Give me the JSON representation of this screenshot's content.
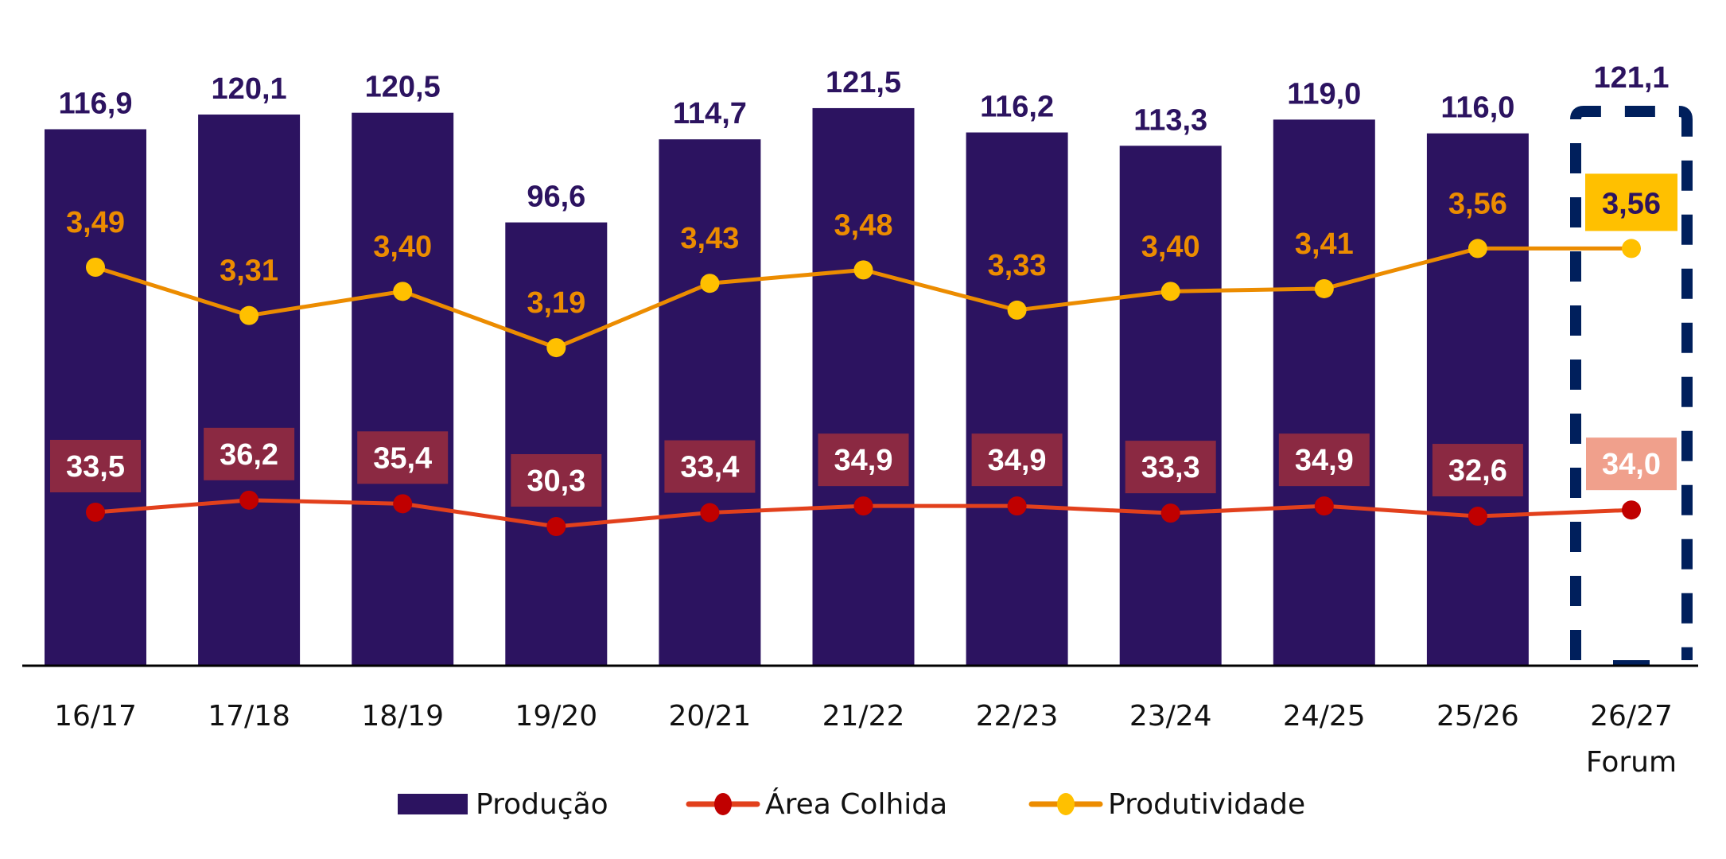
{
  "chart_data": {
    "type": "bar",
    "categories": [
      "16/17",
      "17/18",
      "18/19",
      "19/20",
      "20/21",
      "21/22",
      "22/23",
      "23/24",
      "24/25",
      "25/26",
      "26/27"
    ],
    "category_sublabels": {
      "26/27": "Forum"
    },
    "series": [
      {
        "name": "Produção",
        "type": "bar",
        "color": "#2c1360",
        "values": [
          116.9,
          120.1,
          120.5,
          96.6,
          114.7,
          121.5,
          116.2,
          113.3,
          119.0,
          116.0,
          121.1
        ],
        "labels": [
          "116,9",
          "120,1",
          "120,5",
          "96,6",
          "114,7",
          "121,5",
          "116,2",
          "113,3",
          "119,0",
          "116,0",
          "121,1"
        ]
      },
      {
        "name": "Área Colhida",
        "type": "line",
        "color": "#e2401c",
        "marker_color": "#c00000",
        "label_bg": "#8b2942",
        "highlight_label_bg": "#f0a08c",
        "values": [
          33.5,
          36.2,
          35.4,
          30.3,
          33.4,
          34.9,
          34.9,
          33.3,
          34.9,
          32.6,
          34.0
        ],
        "labels": [
          "33,5",
          "36,2",
          "35,4",
          "30,3",
          "33,4",
          "34,9",
          "34,9",
          "33,3",
          "34,9",
          "32,6",
          "34,0"
        ]
      },
      {
        "name": "Produtividade",
        "type": "line",
        "color": "#ec8c00",
        "marker_color": "#ffc000",
        "label_color": "#ec8c00",
        "highlight_label_bg": "#ffc000",
        "values": [
          3.49,
          3.31,
          3.4,
          3.19,
          3.43,
          3.48,
          3.33,
          3.4,
          3.41,
          3.56,
          3.56
        ],
        "labels": [
          "3,49",
          "3,31",
          "3,40",
          "3,19",
          "3,43",
          "3,48",
          "3,33",
          "3,40",
          "3,41",
          "3,56",
          "3,56"
        ]
      }
    ],
    "highlight_category": "26/27",
    "highlight_color": "#001f5c",
    "legend_position": "bottom",
    "grid": false,
    "title": "",
    "xlabel": "",
    "ylabel": ""
  }
}
